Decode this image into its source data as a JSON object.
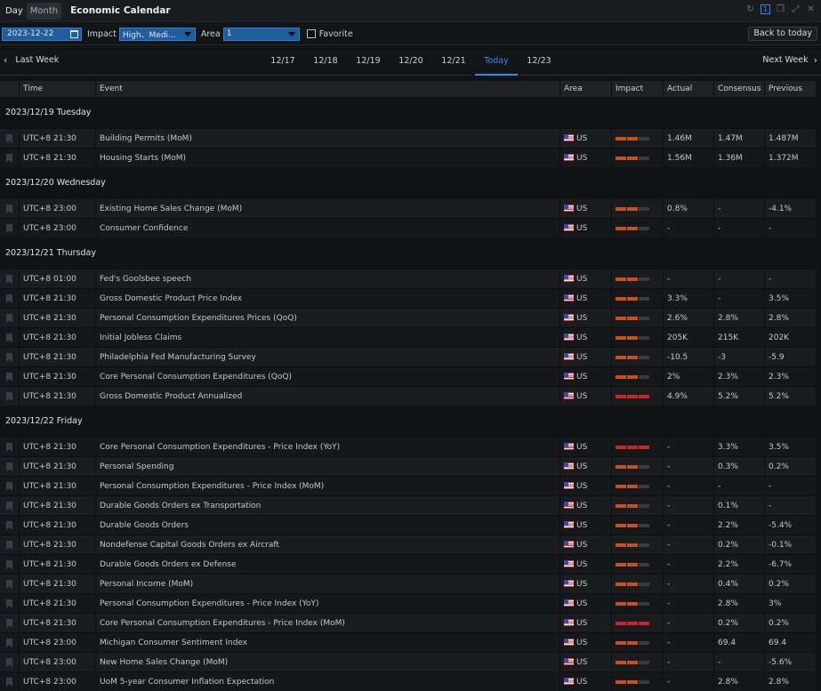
{
  "titlebar": {
    "tab_day": "Day",
    "tab_month": "Month",
    "title": "Economic Calendar",
    "badge": "1"
  },
  "filters": {
    "date": "2023-12-22",
    "impact_label": "Impact",
    "impact_value": "High、Medi...",
    "area_label": "Area",
    "area_value": "1",
    "favorite_label": "Favorite",
    "back_to_today": "Back to today"
  },
  "weeknav": {
    "prev_label": "Last Week",
    "next_label": "Next Week",
    "days": [
      "12/17",
      "12/18",
      "12/19",
      "12/20",
      "12/21",
      "Today",
      "12/23"
    ],
    "active_index": 5
  },
  "columns": {
    "time": "Time",
    "event": "Event",
    "area": "Area",
    "impact": "Impact",
    "actual": "Actual",
    "consensus": "Consensus",
    "previous": "Previous"
  },
  "colors": {
    "accent": "#2d8ef0",
    "impact_medium": "#c8501b",
    "impact_high": "#c9262b",
    "impact_off": "#3a3b3f"
  },
  "groups": [
    {
      "date": "2023/12/19 Tuesday",
      "rows": [
        {
          "time": "UTC+8 21:30",
          "event": "Building Permits (MoM)",
          "area": "US",
          "impact": 2,
          "actual": "1.46M",
          "consensus": "1.47M",
          "previous": "1.487M"
        },
        {
          "time": "UTC+8 21:30",
          "event": "Housing Starts (MoM)",
          "area": "US",
          "impact": 2,
          "actual": "1.56M",
          "consensus": "1.36M",
          "previous": "1.372M"
        }
      ]
    },
    {
      "date": "2023/12/20 Wednesday",
      "rows": [
        {
          "time": "UTC+8 23:00",
          "event": "Existing Home Sales Change (MoM)",
          "area": "US",
          "impact": 2,
          "actual": "0.8%",
          "consensus": "-",
          "previous": "-4.1%"
        },
        {
          "time": "UTC+8 23:00",
          "event": "Consumer Confidence",
          "area": "US",
          "impact": 2,
          "actual": "-",
          "consensus": "-",
          "previous": "-"
        }
      ]
    },
    {
      "date": "2023/12/21 Thursday",
      "rows": [
        {
          "time": "UTC+8 01:00",
          "event": "Fed's Goolsbee speech",
          "area": "US",
          "impact": 2,
          "actual": "-",
          "consensus": "-",
          "previous": "-"
        },
        {
          "time": "UTC+8 21:30",
          "event": "Gross Domestic Product Price Index",
          "area": "US",
          "impact": 2,
          "actual": "3.3%",
          "consensus": "-",
          "previous": "3.5%"
        },
        {
          "time": "UTC+8 21:30",
          "event": "Personal Consumption Expenditures Prices (QoQ)",
          "area": "US",
          "impact": 2,
          "actual": "2.6%",
          "consensus": "2.8%",
          "previous": "2.8%"
        },
        {
          "time": "UTC+8 21:30",
          "event": "Initial Jobless Claims",
          "area": "US",
          "impact": 2,
          "actual": "205K",
          "consensus": "215K",
          "previous": "202K"
        },
        {
          "time": "UTC+8 21:30",
          "event": "Philadelphia Fed Manufacturing Survey",
          "area": "US",
          "impact": 2,
          "actual": "-10.5",
          "consensus": "-3",
          "previous": "-5.9"
        },
        {
          "time": "UTC+8 21:30",
          "event": "Core Personal Consumption Expenditures (QoQ)",
          "area": "US",
          "impact": 2,
          "actual": "2%",
          "consensus": "2.3%",
          "previous": "2.3%"
        },
        {
          "time": "UTC+8 21:30",
          "event": "Gross Domestic Product Annualized",
          "area": "US",
          "impact": 3,
          "actual": "4.9%",
          "consensus": "5.2%",
          "previous": "5.2%"
        }
      ]
    },
    {
      "date": "2023/12/22 Friday",
      "rows": [
        {
          "time": "UTC+8 21:30",
          "event": "Core Personal Consumption Expenditures - Price Index (YoY)",
          "area": "US",
          "impact": 3,
          "actual": "-",
          "consensus": "3.3%",
          "previous": "3.5%"
        },
        {
          "time": "UTC+8 21:30",
          "event": "Personal Spending",
          "area": "US",
          "impact": 2,
          "actual": "-",
          "consensus": "0.3%",
          "previous": "0.2%"
        },
        {
          "time": "UTC+8 21:30",
          "event": "Personal Consumption Expenditures - Price Index (MoM)",
          "area": "US",
          "impact": 2,
          "actual": "-",
          "consensus": "-",
          "previous": "-"
        },
        {
          "time": "UTC+8 21:30",
          "event": "Durable Goods Orders ex Transportation",
          "area": "US",
          "impact": 2,
          "actual": "-",
          "consensus": "0.1%",
          "previous": "-"
        },
        {
          "time": "UTC+8 21:30",
          "event": "Durable Goods Orders",
          "area": "US",
          "impact": 2,
          "actual": "-",
          "consensus": "2.2%",
          "previous": "-5.4%"
        },
        {
          "time": "UTC+8 21:30",
          "event": "Nondefense Capital Goods Orders ex Aircraft",
          "area": "US",
          "impact": 2,
          "actual": "-",
          "consensus": "0.2%",
          "previous": "-0.1%"
        },
        {
          "time": "UTC+8 21:30",
          "event": "Durable Goods Orders ex Defense",
          "area": "US",
          "impact": 2,
          "actual": "-",
          "consensus": "2.2%",
          "previous": "-6.7%"
        },
        {
          "time": "UTC+8 21:30",
          "event": "Personal Income (MoM)",
          "area": "US",
          "impact": 2,
          "actual": "-",
          "consensus": "0.4%",
          "previous": "0.2%"
        },
        {
          "time": "UTC+8 21:30",
          "event": "Personal Consumption Expenditures - Price Index (YoY)",
          "area": "US",
          "impact": 2,
          "actual": "-",
          "consensus": "2.8%",
          "previous": "3%"
        },
        {
          "time": "UTC+8 21:30",
          "event": "Core Personal Consumption Expenditures - Price Index (MoM)",
          "area": "US",
          "impact": 3,
          "actual": "-",
          "consensus": "0.2%",
          "previous": "0.2%"
        },
        {
          "time": "UTC+8 23:00",
          "event": "Michigan Consumer Sentiment Index",
          "area": "US",
          "impact": 2,
          "actual": "-",
          "consensus": "69.4",
          "previous": "69.4"
        },
        {
          "time": "UTC+8 23:00",
          "event": "New Home Sales Change (MoM)",
          "area": "US",
          "impact": 2,
          "actual": "-",
          "consensus": "-",
          "previous": "-5.6%"
        },
        {
          "time": "UTC+8 23:00",
          "event": "UoM 5-year Consumer Inflation Expectation",
          "area": "US",
          "impact": 2,
          "actual": "-",
          "consensus": "2.8%",
          "previous": "2.8%"
        }
      ]
    }
  ]
}
